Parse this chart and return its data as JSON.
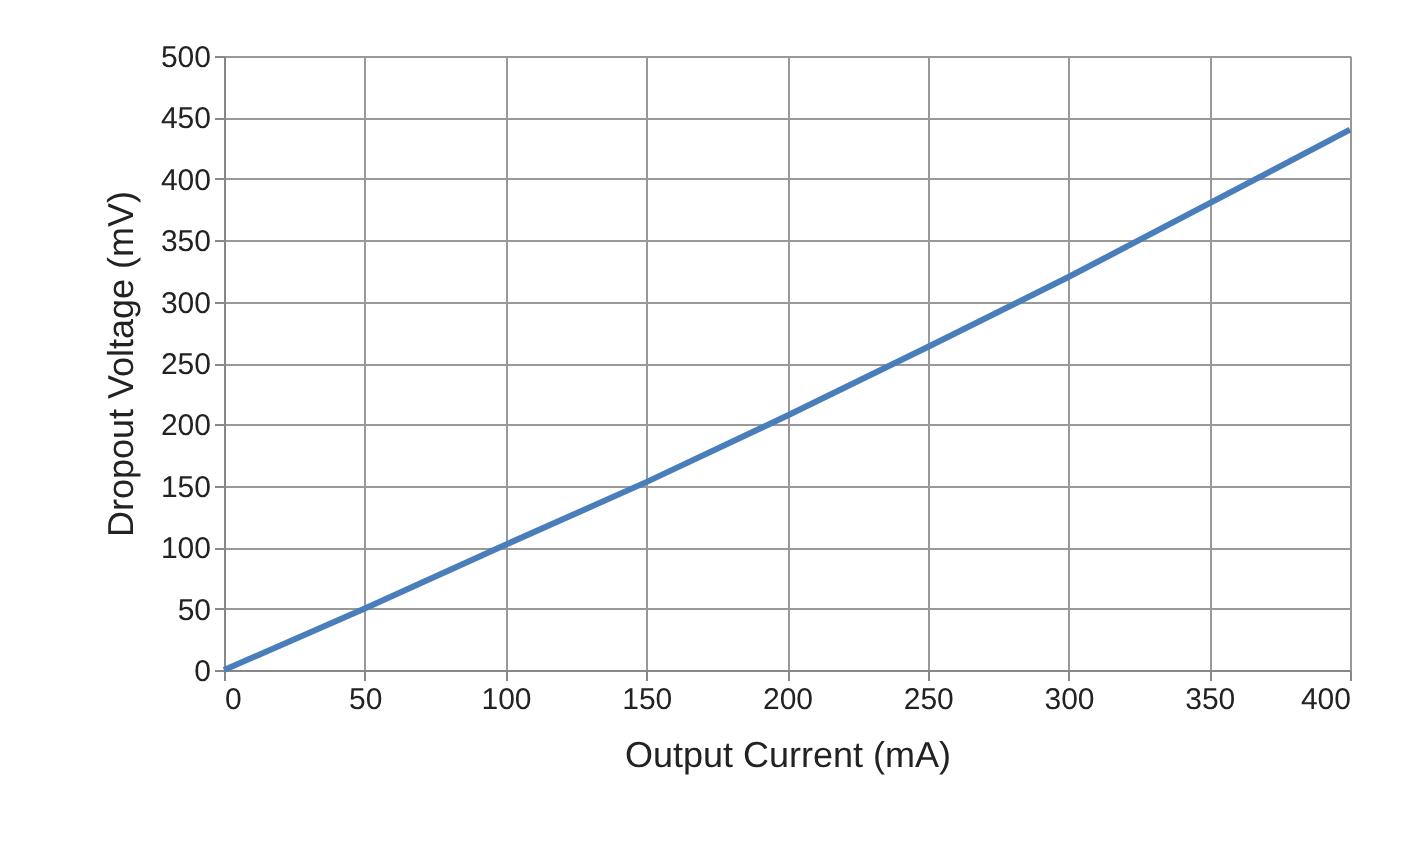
{
  "chart_data": {
    "type": "line",
    "xlabel": "Output Current (mA)",
    "ylabel": "Dropout Voltage (mV)",
    "x": [
      0,
      50,
      100,
      150,
      200,
      250,
      300,
      350,
      400
    ],
    "series": [
      {
        "color": "#4a7ebb",
        "values": [
          0,
          50,
          102,
          153,
          207,
          263,
          320,
          380,
          440
        ]
      }
    ],
    "xlim": [
      0,
      400
    ],
    "xticks": [
      0,
      50,
      100,
      150,
      200,
      250,
      300,
      350,
      400
    ],
    "ylim": [
      0,
      500
    ],
    "yticks": [
      0,
      50,
      100,
      150,
      200,
      250,
      300,
      350,
      400,
      450,
      500
    ],
    "grid": true,
    "marker": "none",
    "line_style": "solid"
  }
}
